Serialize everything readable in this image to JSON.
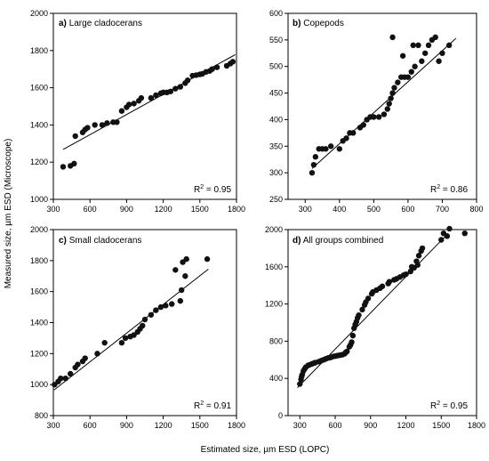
{
  "figure": {
    "xlabel": "Estimated size, µm ESD (LOPC)",
    "ylabel": "Measured size, µm ESD (Microscope)"
  },
  "chart_data": [
    {
      "type": "scatter",
      "tag": "a)",
      "title": "Large cladocerans",
      "r2_prefix": "R",
      "r2_sup": "2",
      "r2_value": " = 0.95",
      "xlim": [
        300,
        1800
      ],
      "ylim": [
        1000,
        2000
      ],
      "xticks": [
        300,
        600,
        900,
        1200,
        1500,
        1800
      ],
      "yticks": [
        1000,
        1200,
        1400,
        1600,
        1800,
        2000
      ],
      "fit": [
        [
          380,
          1268
        ],
        [
          1790,
          1778
        ]
      ],
      "points": [
        [
          380,
          1175
        ],
        [
          440,
          1180
        ],
        [
          470,
          1192
        ],
        [
          480,
          1340
        ],
        [
          540,
          1360
        ],
        [
          560,
          1375
        ],
        [
          580,
          1385
        ],
        [
          640,
          1400
        ],
        [
          700,
          1400
        ],
        [
          740,
          1410
        ],
        [
          790,
          1415
        ],
        [
          820,
          1415
        ],
        [
          860,
          1475
        ],
        [
          900,
          1495
        ],
        [
          920,
          1510
        ],
        [
          960,
          1515
        ],
        [
          1000,
          1530
        ],
        [
          1020,
          1545
        ],
        [
          1100,
          1545
        ],
        [
          1140,
          1560
        ],
        [
          1180,
          1570
        ],
        [
          1200,
          1575
        ],
        [
          1230,
          1575
        ],
        [
          1260,
          1580
        ],
        [
          1300,
          1595
        ],
        [
          1340,
          1605
        ],
        [
          1380,
          1625
        ],
        [
          1400,
          1640
        ],
        [
          1440,
          1665
        ],
        [
          1470,
          1668
        ],
        [
          1500,
          1672
        ],
        [
          1520,
          1675
        ],
        [
          1550,
          1685
        ],
        [
          1580,
          1690
        ],
        [
          1600,
          1700
        ],
        [
          1640,
          1710
        ],
        [
          1720,
          1718
        ],
        [
          1750,
          1730
        ],
        [
          1770,
          1740
        ]
      ]
    },
    {
      "type": "scatter",
      "tag": "b)",
      "title": "Copepods",
      "r2_prefix": "R",
      "r2_sup": "2",
      "r2_value": " = 0.86",
      "xlim": [
        250,
        800
      ],
      "ylim": [
        250,
        600
      ],
      "xticks": [
        300,
        400,
        500,
        600,
        700,
        800
      ],
      "yticks": [
        250,
        300,
        350,
        400,
        450,
        500,
        550,
        600
      ],
      "fit": [
        [
          320,
          308
        ],
        [
          740,
          553
        ]
      ],
      "points": [
        [
          320,
          300
        ],
        [
          325,
          315
        ],
        [
          330,
          330
        ],
        [
          340,
          345
        ],
        [
          350,
          345
        ],
        [
          360,
          345
        ],
        [
          375,
          350
        ],
        [
          400,
          345
        ],
        [
          410,
          360
        ],
        [
          420,
          365
        ],
        [
          430,
          375
        ],
        [
          440,
          375
        ],
        [
          460,
          385
        ],
        [
          470,
          390
        ],
        [
          480,
          400
        ],
        [
          490,
          405
        ],
        [
          500,
          405
        ],
        [
          515,
          405
        ],
        [
          530,
          410
        ],
        [
          540,
          420
        ],
        [
          545,
          430
        ],
        [
          550,
          440
        ],
        [
          555,
          450
        ],
        [
          560,
          460
        ],
        [
          570,
          470
        ],
        [
          580,
          480
        ],
        [
          590,
          480
        ],
        [
          600,
          480
        ],
        [
          610,
          490
        ],
        [
          620,
          500
        ],
        [
          640,
          510
        ],
        [
          650,
          525
        ],
        [
          660,
          540
        ],
        [
          670,
          550
        ],
        [
          555,
          555
        ],
        [
          585,
          520
        ],
        [
          615,
          540
        ],
        [
          630,
          540
        ],
        [
          680,
          555
        ],
        [
          690,
          510
        ],
        [
          700,
          525
        ],
        [
          720,
          540
        ]
      ]
    },
    {
      "type": "scatter",
      "tag": "c)",
      "title": "Small cladocerans",
      "r2_prefix": "R",
      "r2_sup": "2",
      "r2_value": " = 0.91",
      "xlim": [
        300,
        1800
      ],
      "ylim": [
        800,
        2000
      ],
      "xticks": [
        300,
        600,
        900,
        1200,
        1500,
        1800
      ],
      "yticks": [
        800,
        1000,
        1200,
        1400,
        1600,
        1800,
        2000
      ],
      "fit": [
        [
          305,
          965
        ],
        [
          1570,
          1745
        ]
      ],
      "points": [
        [
          310,
          1000
        ],
        [
          340,
          1020
        ],
        [
          360,
          1040
        ],
        [
          400,
          1040
        ],
        [
          440,
          1070
        ],
        [
          480,
          1110
        ],
        [
          500,
          1130
        ],
        [
          540,
          1150
        ],
        [
          560,
          1170
        ],
        [
          660,
          1200
        ],
        [
          720,
          1270
        ],
        [
          860,
          1270
        ],
        [
          890,
          1300
        ],
        [
          930,
          1310
        ],
        [
          960,
          1320
        ],
        [
          990,
          1340
        ],
        [
          1010,
          1360
        ],
        [
          1030,
          1380
        ],
        [
          1050,
          1420
        ],
        [
          1100,
          1450
        ],
        [
          1140,
          1480
        ],
        [
          1180,
          1500
        ],
        [
          1220,
          1510
        ],
        [
          1270,
          1520
        ],
        [
          1300,
          1740
        ],
        [
          1340,
          1540
        ],
        [
          1350,
          1610
        ],
        [
          1360,
          1790
        ],
        [
          1380,
          1700
        ],
        [
          1390,
          1810
        ],
        [
          1560,
          1810
        ]
      ]
    },
    {
      "type": "scatter",
      "tag": "d)",
      "title": "All groups combined",
      "r2_prefix": "R",
      "r2_sup": "2",
      "r2_value": " = 0.95",
      "xlim": [
        200,
        1800
      ],
      "ylim": [
        0,
        2000
      ],
      "xticks": [
        300,
        600,
        900,
        1200,
        1500,
        1800
      ],
      "yticks": [
        0,
        400,
        800,
        1200,
        1600,
        2000
      ],
      "fit": [
        [
          280,
          300
        ],
        [
          1560,
          1960
        ]
      ],
      "points": [
        [
          300,
          340
        ],
        [
          310,
          390
        ],
        [
          320,
          440
        ],
        [
          330,
          480
        ],
        [
          350,
          520
        ],
        [
          370,
          540
        ],
        [
          400,
          555
        ],
        [
          430,
          570
        ],
        [
          460,
          580
        ],
        [
          500,
          600
        ],
        [
          540,
          620
        ],
        [
          580,
          635
        ],
        [
          620,
          645
        ],
        [
          660,
          655
        ],
        [
          680,
          665
        ],
        [
          700,
          690
        ],
        [
          720,
          740
        ],
        [
          740,
          790
        ],
        [
          750,
          860
        ],
        [
          760,
          940
        ],
        [
          780,
          1010
        ],
        [
          800,
          1080
        ],
        [
          830,
          1140
        ],
        [
          850,
          1190
        ],
        [
          880,
          1260
        ],
        [
          910,
          1310
        ],
        [
          950,
          1350
        ],
        [
          1000,
          1390
        ],
        [
          1050,
          1420
        ],
        [
          1100,
          1460
        ],
        [
          1150,
          1490
        ],
        [
          1200,
          1520
        ],
        [
          1240,
          1550
        ],
        [
          1270,
          1590
        ],
        [
          1290,
          1660
        ],
        [
          1310,
          1720
        ],
        [
          1330,
          1770
        ],
        [
          1340,
          1800
        ],
        [
          1500,
          1890
        ],
        [
          1520,
          1960
        ],
        [
          1550,
          1930
        ],
        [
          1570,
          2010
        ],
        [
          1700,
          1960
        ],
        [
          1300,
          1620
        ],
        [
          1250,
          1600
        ],
        [
          1180,
          1510
        ],
        [
          1120,
          1470
        ],
        [
          1060,
          1440
        ],
        [
          980,
          1370
        ],
        [
          920,
          1330
        ],
        [
          860,
          1220
        ],
        [
          790,
          1050
        ],
        [
          770,
          980
        ],
        [
          730,
          760
        ],
        [
          690,
          680
        ],
        [
          640,
          650
        ],
        [
          600,
          640
        ],
        [
          560,
          625
        ],
        [
          520,
          610
        ],
        [
          480,
          590
        ],
        [
          420,
          565
        ],
        [
          380,
          545
        ],
        [
          340,
          500
        ],
        [
          315,
          420
        ]
      ]
    }
  ]
}
